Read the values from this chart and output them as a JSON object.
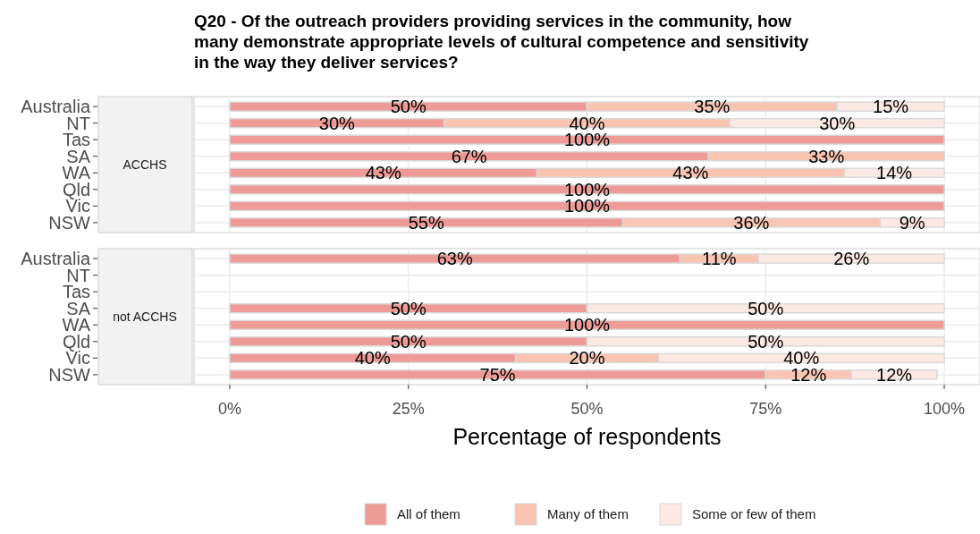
{
  "chart_data": [
    {
      "type": "bar",
      "orientation": "horizontal",
      "stacked": true,
      "title": "Q20 - Of the outreach providers providing services in the community, how many demonstrate appropriate levels of cultural competence and sensitivity in the way they deliver services?",
      "ylabel": "ACCHS",
      "categories": [
        "Australia",
        "NT",
        "Tas",
        "SA",
        "WA",
        "Qld",
        "Vic",
        "NSW"
      ],
      "xlim": [
        -5,
        105
      ],
      "xticks": [
        0,
        25,
        50,
        75,
        100
      ],
      "tick_labels": "y",
      "grid": true,
      "series": [
        {
          "color": "#ee9a96",
          "values": [
            50,
            30,
            100,
            67,
            43,
            100,
            100,
            55
          ],
          "value_labels": [
            "50%",
            "30%",
            "100%",
            "67%",
            "43%",
            "100%",
            "100%",
            "55%"
          ]
        },
        {
          "color": "#f9c4b2",
          "values": [
            35,
            40,
            0,
            33,
            43,
            0,
            0,
            36
          ],
          "value_labels": [
            "35%",
            "40%",
            null,
            "33%",
            "43%",
            null,
            null,
            "36%"
          ]
        },
        {
          "color": "#fde9e3",
          "values": [
            15,
            30,
            0,
            0,
            14,
            0,
            0,
            9
          ],
          "value_labels": [
            "15%",
            "30%",
            null,
            null,
            "14%",
            null,
            null,
            "9%"
          ]
        }
      ]
    },
    {
      "type": "bar",
      "orientation": "horizontal",
      "stacked": true,
      "ylabel": "not ACCHS",
      "xlabel": "Percentage of respondents",
      "categories": [
        "Australia",
        "NT",
        "Tas",
        "SA",
        "WA",
        "Qld",
        "Vic",
        "NSW"
      ],
      "xlim": [
        -5,
        105
      ],
      "xticks": [
        {
          "value": 0,
          "label": "0%"
        },
        {
          "value": 25,
          "label": "25%"
        },
        {
          "value": 50,
          "label": "50%"
        },
        {
          "value": 75,
          "label": "75%"
        },
        {
          "value": 100,
          "label": "100%"
        }
      ],
      "grid": true,
      "legend": "bottom",
      "series": [
        {
          "name": "All of them",
          "color": "#ee9a96",
          "values": [
            63,
            null,
            null,
            50,
            100,
            50,
            40,
            75
          ],
          "value_labels": [
            "63%",
            null,
            null,
            "50%",
            "100%",
            "50%",
            "40%",
            "75%"
          ]
        },
        {
          "name": "Many of them",
          "color": "#f9c4b2",
          "values": [
            11,
            null,
            null,
            0,
            0,
            0,
            20,
            12
          ],
          "value_labels": [
            "11%",
            null,
            null,
            null,
            null,
            null,
            "20%",
            "12%"
          ]
        },
        {
          "name": "Some or few of them",
          "color": "#fde9e3",
          "values": [
            26,
            null,
            null,
            50,
            0,
            50,
            40,
            12
          ],
          "value_labels": [
            "26%",
            null,
            null,
            "50%",
            null,
            "50%",
            "40%",
            "12%"
          ]
        }
      ]
    }
  ]
}
